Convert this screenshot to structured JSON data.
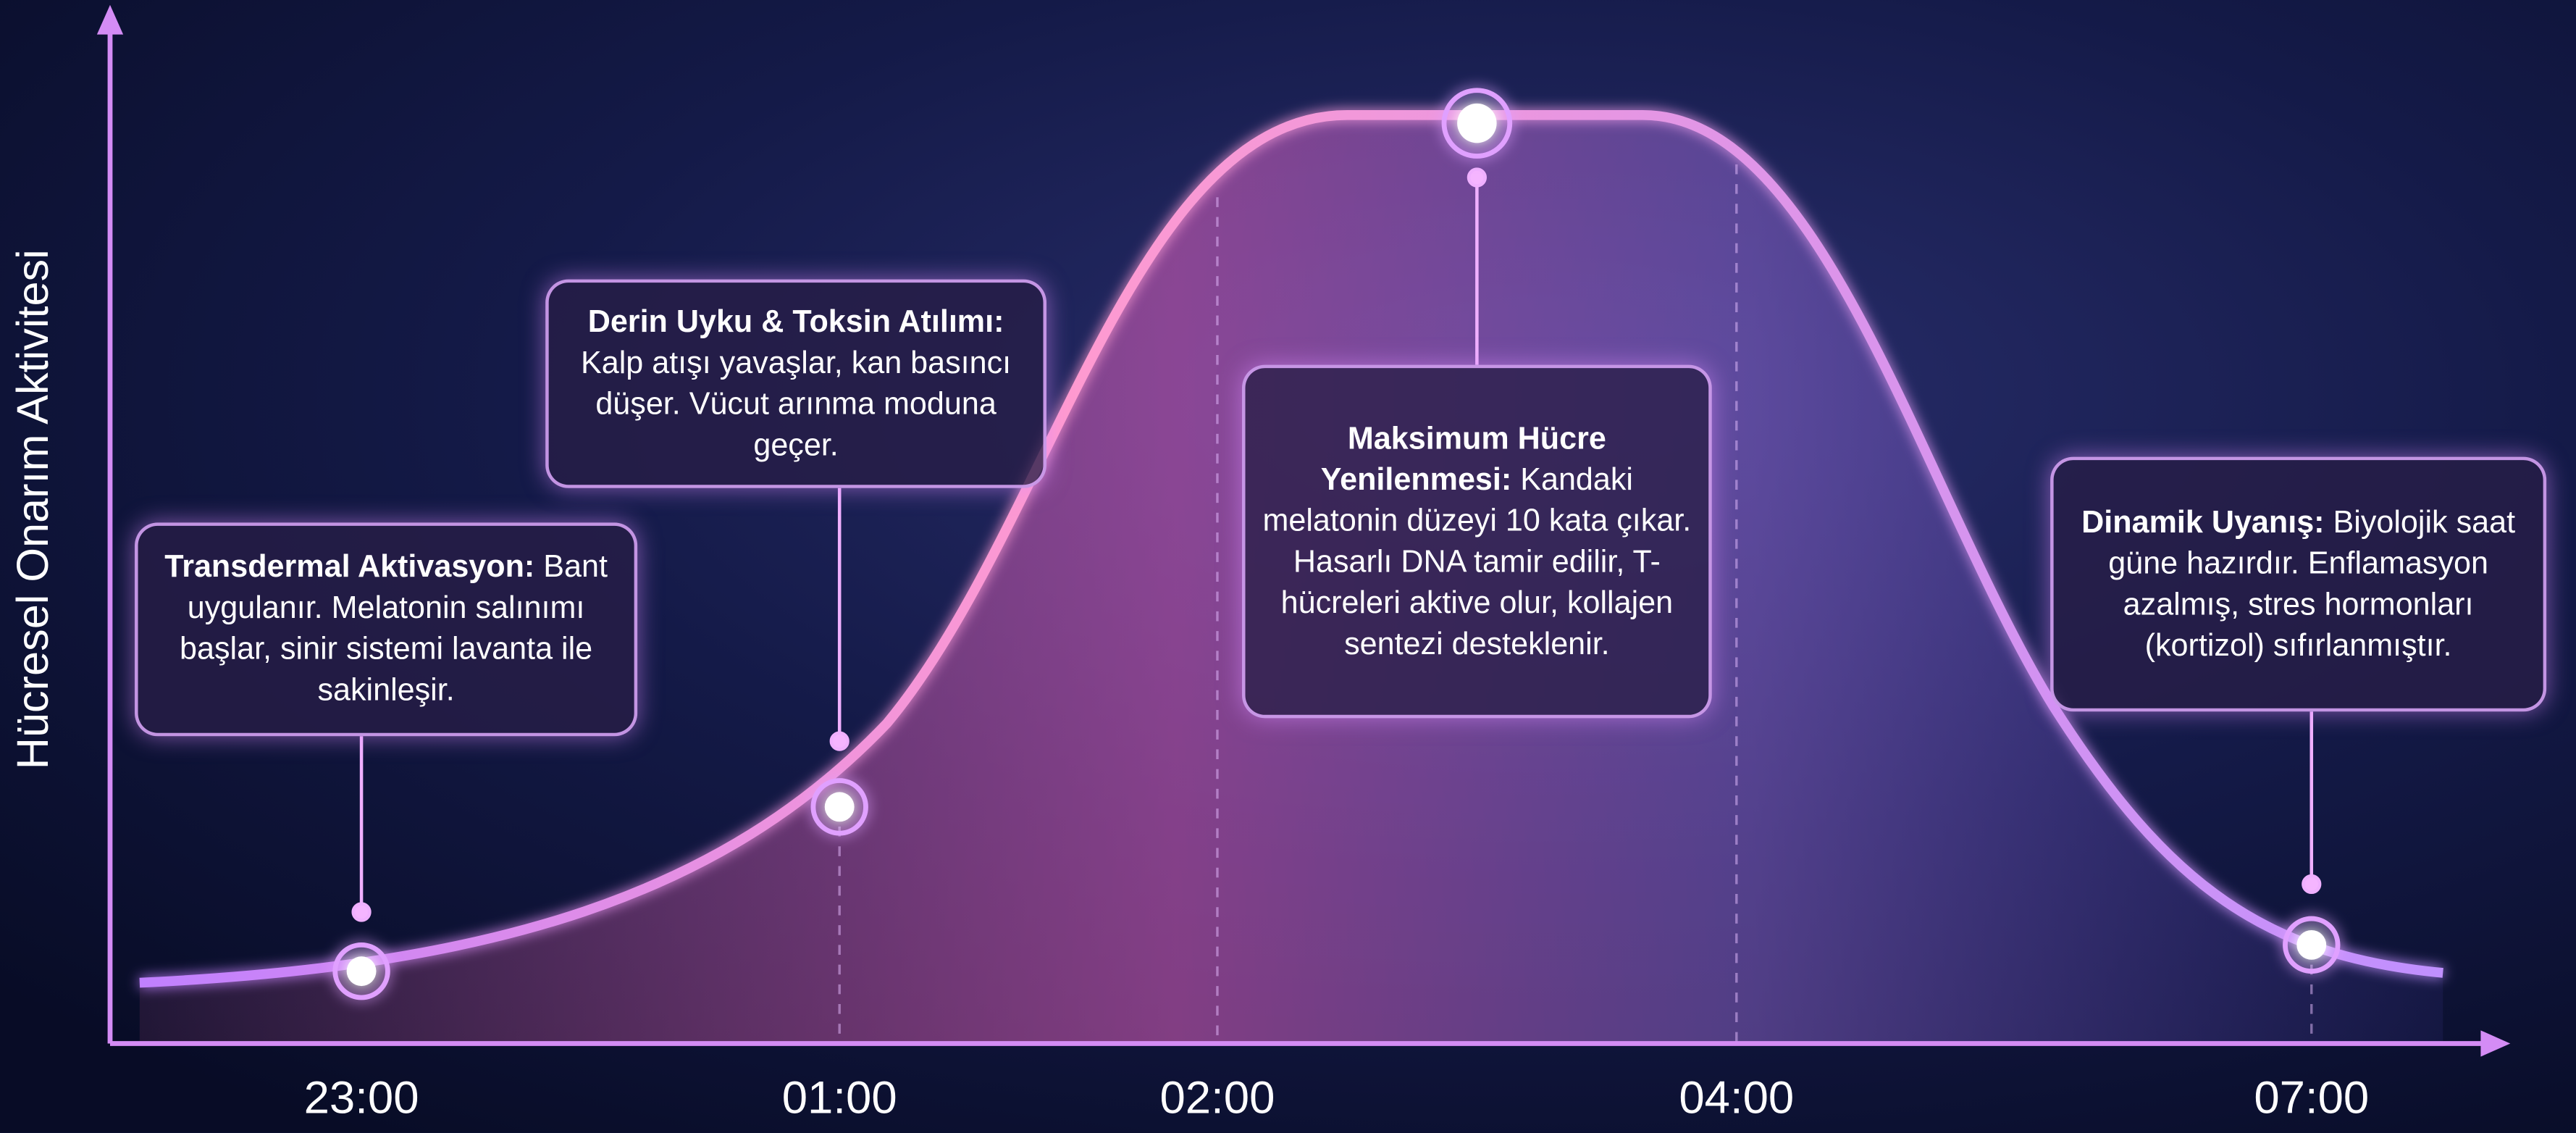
{
  "y_axis_label": "Hücresel Onarım Aktivitesi",
  "x_labels": [
    "23:00",
    "01:00",
    "02:00",
    "04:00",
    "07:00"
  ],
  "annotations": [
    {
      "title": "Transdermal Aktivasyon:",
      "text": "Bant uygulanır. Melatonin salınımı başlar, sinir sistemi lavanta ile sakinleşir."
    },
    {
      "title": "Derin Uyku & Toksin Atılımı:",
      "text": "Kalp atışı yavaşlar, kan basıncı düşer. Vücut arınma moduna geçer."
    },
    {
      "title": "Maksimum Hücre Yenilenmesi:",
      "text": "Kandaki melatonin düzeyi 10 kata çıkar. Hasarlı DNA tamir edilir, T-hücreleri aktive olur, kollajen sentezi desteklenir."
    },
    {
      "title": "Dinamik Uyanış:",
      "text": "Biyolojik saat güne hazırdır. Enflamasyon azalmış, stres hormonları (kortizol) sıfırlanmıştır."
    }
  ]
}
